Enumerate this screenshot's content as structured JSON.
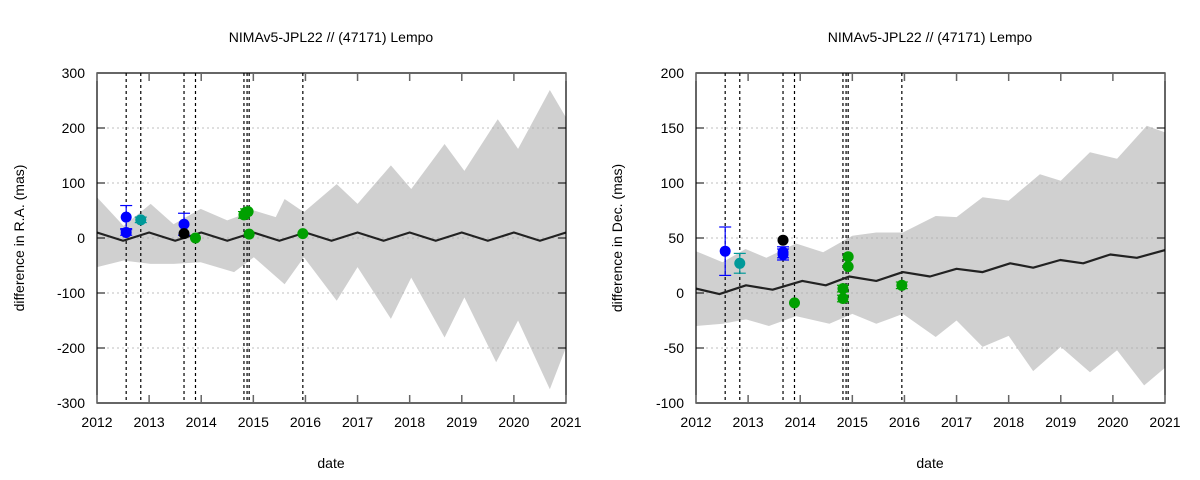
{
  "chart_data": [
    {
      "type": "scatter",
      "title": "NIMAv5-JPL22 // (47171) Lempo",
      "xlabel": "date",
      "ylabel": "difference in R.A. (mas)",
      "xlim": [
        2012,
        2021
      ],
      "ylim": [
        -300,
        300
      ],
      "xticks": [
        "2012",
        "2013",
        "2014",
        "2015",
        "2016",
        "2017",
        "2018",
        "2019",
        "2020",
        "2021"
      ],
      "yticks": [
        "-300",
        "-200",
        "-100",
        "0",
        "100",
        "200",
        "300"
      ],
      "grid": "horizontal dotted",
      "uncertainty_band": {
        "color": "#d0d0d0",
        "upper": [
          [
            2012,
            74
          ],
          [
            2012.51,
            22
          ],
          [
            2013.03,
            62
          ],
          [
            2013.47,
            25
          ],
          [
            2013.99,
            53
          ],
          [
            2014.5,
            32
          ],
          [
            2015.01,
            50
          ],
          [
            2015.43,
            38
          ],
          [
            2015.6,
            71
          ],
          [
            2015.97,
            47
          ],
          [
            2016.6,
            98
          ],
          [
            2017.0,
            62
          ],
          [
            2017.64,
            132
          ],
          [
            2018.03,
            89
          ],
          [
            2018.67,
            171
          ],
          [
            2019.05,
            122
          ],
          [
            2019.69,
            216
          ],
          [
            2020.08,
            162
          ],
          [
            2020.69,
            269
          ],
          [
            2021,
            219
          ]
        ],
        "lower": [
          [
            2012,
            -53
          ],
          [
            2012.51,
            -41
          ],
          [
            2013.03,
            -47
          ],
          [
            2013.47,
            -47
          ],
          [
            2013.99,
            -44
          ],
          [
            2014.63,
            -62
          ],
          [
            2015.01,
            -35
          ],
          [
            2015.6,
            -84
          ],
          [
            2015.97,
            -35
          ],
          [
            2016.6,
            -114
          ],
          [
            2017.0,
            -53
          ],
          [
            2017.64,
            -147
          ],
          [
            2018.03,
            -72
          ],
          [
            2018.67,
            -181
          ],
          [
            2019.05,
            -108
          ],
          [
            2019.66,
            -226
          ],
          [
            2020.08,
            -150
          ],
          [
            2020.69,
            -275
          ],
          [
            2021,
            -199
          ]
        ]
      },
      "model_line": {
        "color": "#222222",
        "points": [
          [
            2012,
            10
          ],
          [
            2012.25,
            2.5
          ],
          [
            2012.5,
            -5
          ],
          [
            2012.75,
            2.5
          ],
          [
            2013,
            10
          ],
          [
            2013.25,
            2.5
          ],
          [
            2013.5,
            -5
          ],
          [
            2013.75,
            2.5
          ],
          [
            2014,
            10
          ],
          [
            2014.25,
            2.5
          ],
          [
            2014.5,
            -5
          ],
          [
            2014.75,
            2.5
          ],
          [
            2015,
            10
          ],
          [
            2015.25,
            2.5
          ],
          [
            2015.5,
            -5
          ],
          [
            2015.75,
            2.5
          ],
          [
            2016,
            10
          ],
          [
            2016.25,
            2.5
          ],
          [
            2016.5,
            -5
          ],
          [
            2016.75,
            2.5
          ],
          [
            2017,
            10
          ],
          [
            2017.25,
            2.5
          ],
          [
            2017.5,
            -5
          ],
          [
            2017.75,
            2.5
          ],
          [
            2018,
            10
          ],
          [
            2018.25,
            2.5
          ],
          [
            2018.5,
            -5
          ],
          [
            2018.75,
            2.5
          ],
          [
            2019,
            10
          ],
          [
            2019.25,
            2.5
          ],
          [
            2019.5,
            -5
          ],
          [
            2019.75,
            2.5
          ],
          [
            2020,
            10
          ],
          [
            2020.25,
            2.5
          ],
          [
            2020.5,
            -5
          ],
          [
            2020.75,
            2.5
          ],
          [
            2021,
            10
          ]
        ]
      },
      "observation_dates": [
        2012.56,
        2012.84,
        2013.67,
        2013.89,
        2014.82,
        2014.88,
        2014.92,
        2015.95
      ],
      "points": [
        {
          "x": 2012.56,
          "y": 38,
          "err": 21,
          "color": "#0000ff"
        },
        {
          "x": 2012.56,
          "y": 10,
          "err": 5,
          "color": "#0000ff"
        },
        {
          "x": 2012.84,
          "y": 33,
          "err": 5,
          "color": "#009999"
        },
        {
          "x": 2013.67,
          "y": 25,
          "err": 20,
          "color": "#0000ff"
        },
        {
          "x": 2013.67,
          "y": 8,
          "err": 0,
          "color": "#000000"
        },
        {
          "x": 2013.89,
          "y": 0,
          "err": 0,
          "color": "#00a000"
        },
        {
          "x": 2014.82,
          "y": 42,
          "err": 6,
          "color": "#00a000"
        },
        {
          "x": 2014.86,
          "y": 47,
          "err": 6,
          "color": "#00a000"
        },
        {
          "x": 2014.9,
          "y": 48,
          "err": 0,
          "color": "#00a000"
        },
        {
          "x": 2014.92,
          "y": 7,
          "err": 0,
          "color": "#00a000"
        },
        {
          "x": 2015.95,
          "y": 8,
          "err": 0,
          "color": "#00a000"
        }
      ]
    },
    {
      "type": "scatter",
      "title": "NIMAv5-JPL22 // (47171) Lempo",
      "xlabel": "date",
      "ylabel": "difference in Dec. (mas)",
      "xlim": [
        2012,
        2021
      ],
      "ylim": [
        -100,
        200
      ],
      "xticks": [
        "2012",
        "2013",
        "2014",
        "2015",
        "2016",
        "2017",
        "2018",
        "2019",
        "2020",
        "2021"
      ],
      "yticks": [
        "-100",
        "-50",
        "0",
        "50",
        "100",
        "150",
        "200"
      ],
      "grid": "horizontal dotted",
      "uncertainty_band": {
        "color": "#d0d0d0",
        "upper": [
          [
            2012,
            38
          ],
          [
            2012.51,
            28
          ],
          [
            2012.95,
            40
          ],
          [
            2013.35,
            32
          ],
          [
            2013.92,
            45
          ],
          [
            2014.44,
            37
          ],
          [
            2015.0,
            52
          ],
          [
            2015.46,
            55
          ],
          [
            2015.97,
            55
          ],
          [
            2016.6,
            70
          ],
          [
            2017.0,
            69
          ],
          [
            2017.5,
            87
          ],
          [
            2018.0,
            84
          ],
          [
            2018.6,
            108
          ],
          [
            2019.0,
            102
          ],
          [
            2019.56,
            128
          ],
          [
            2020.08,
            122
          ],
          [
            2020.65,
            152
          ],
          [
            2021,
            146
          ]
        ],
        "lower": [
          [
            2012,
            -30
          ],
          [
            2012.51,
            -28
          ],
          [
            2012.96,
            -24
          ],
          [
            2013.4,
            -30
          ],
          [
            2013.92,
            -21
          ],
          [
            2014.56,
            -28
          ],
          [
            2015.0,
            -19
          ],
          [
            2015.46,
            -28
          ],
          [
            2015.97,
            -19
          ],
          [
            2016.6,
            -40
          ],
          [
            2017.0,
            -25
          ],
          [
            2017.5,
            -49
          ],
          [
            2018.0,
            -39
          ],
          [
            2018.47,
            -71
          ],
          [
            2019.0,
            -49
          ],
          [
            2019.56,
            -72
          ],
          [
            2020.08,
            -52
          ],
          [
            2020.6,
            -84
          ],
          [
            2021,
            -68
          ]
        ]
      },
      "model_line": {
        "color": "#222222",
        "points": [
          [
            2012,
            4
          ],
          [
            2012.45,
            -1
          ],
          [
            2012.96,
            7
          ],
          [
            2013.47,
            3
          ],
          [
            2014.04,
            11
          ],
          [
            2014.49,
            7
          ],
          [
            2014.94,
            15
          ],
          [
            2015.46,
            11
          ],
          [
            2015.97,
            19
          ],
          [
            2016.49,
            15
          ],
          [
            2017.0,
            22
          ],
          [
            2017.5,
            19
          ],
          [
            2018.03,
            27
          ],
          [
            2018.47,
            23
          ],
          [
            2018.99,
            30
          ],
          [
            2019.43,
            27
          ],
          [
            2019.95,
            35
          ],
          [
            2020.46,
            32
          ],
          [
            2021,
            39
          ]
        ]
      },
      "observation_dates": [
        2012.56,
        2012.84,
        2013.67,
        2013.89,
        2014.82,
        2014.88,
        2014.92,
        2015.95
      ],
      "points": [
        {
          "x": 2012.56,
          "y": 38,
          "err": 22,
          "color": "#0000ff"
        },
        {
          "x": 2012.84,
          "y": 27,
          "err": 9,
          "color": "#009999"
        },
        {
          "x": 2013.67,
          "y": 48,
          "err": 0,
          "color": "#000000"
        },
        {
          "x": 2013.67,
          "y": 37,
          "err": 5,
          "color": "#0000ff"
        },
        {
          "x": 2013.67,
          "y": 35,
          "err": 5,
          "color": "#0000ff"
        },
        {
          "x": 2013.89,
          "y": -9,
          "err": 0,
          "color": "#00a000"
        },
        {
          "x": 2014.82,
          "y": 4,
          "err": 3,
          "color": "#00a000"
        },
        {
          "x": 2014.82,
          "y": -5,
          "err": 3,
          "color": "#00a000"
        },
        {
          "x": 2014.92,
          "y": 33,
          "err": 0,
          "color": "#00a000"
        },
        {
          "x": 2014.92,
          "y": 24,
          "err": 0,
          "color": "#00a000"
        },
        {
          "x": 2015.95,
          "y": 7,
          "err": 3,
          "color": "#00a000"
        }
      ]
    }
  ]
}
